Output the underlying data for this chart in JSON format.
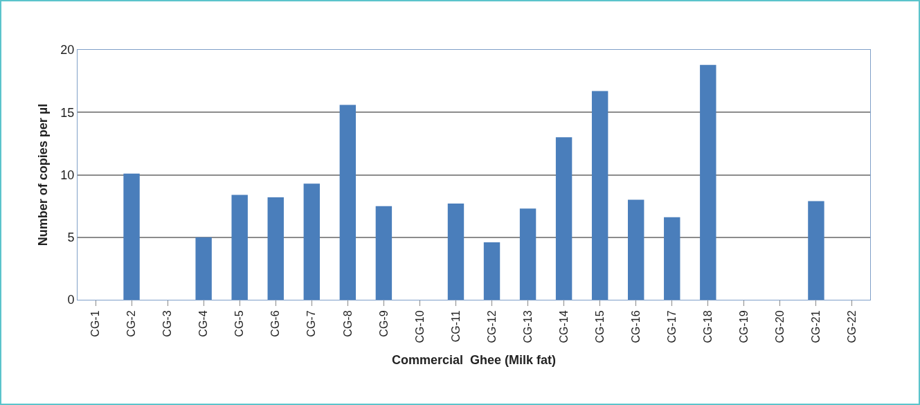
{
  "chart_data": {
    "type": "bar",
    "xlabel": "Commercial  Ghee (Milk fat)",
    "ylabel": "Number of copies per µl",
    "categories": [
      "CG-1",
      "CG-2",
      "CG-3",
      "CG-4",
      "CG-5",
      "CG-6",
      "CG-7",
      "CG-8",
      "CG-9",
      "CG-10",
      "CG-11",
      "CG-12",
      "CG-13",
      "CG-14",
      "CG-15",
      "CG-16",
      "CG-17",
      "CG-18",
      "CG-19",
      "CG-20",
      "CG-21",
      "CG-22"
    ],
    "values": [
      0,
      10.1,
      0,
      5.0,
      8.4,
      8.2,
      9.3,
      15.6,
      7.5,
      0,
      7.7,
      4.6,
      7.3,
      13.0,
      16.7,
      8.0,
      6.6,
      18.8,
      0,
      0,
      7.9,
      0
    ],
    "color": "#4a7ebb",
    "ylim": [
      0,
      20
    ],
    "yticks": [
      0,
      5,
      10,
      15,
      20
    ],
    "grid": "y",
    "legend": false
  }
}
